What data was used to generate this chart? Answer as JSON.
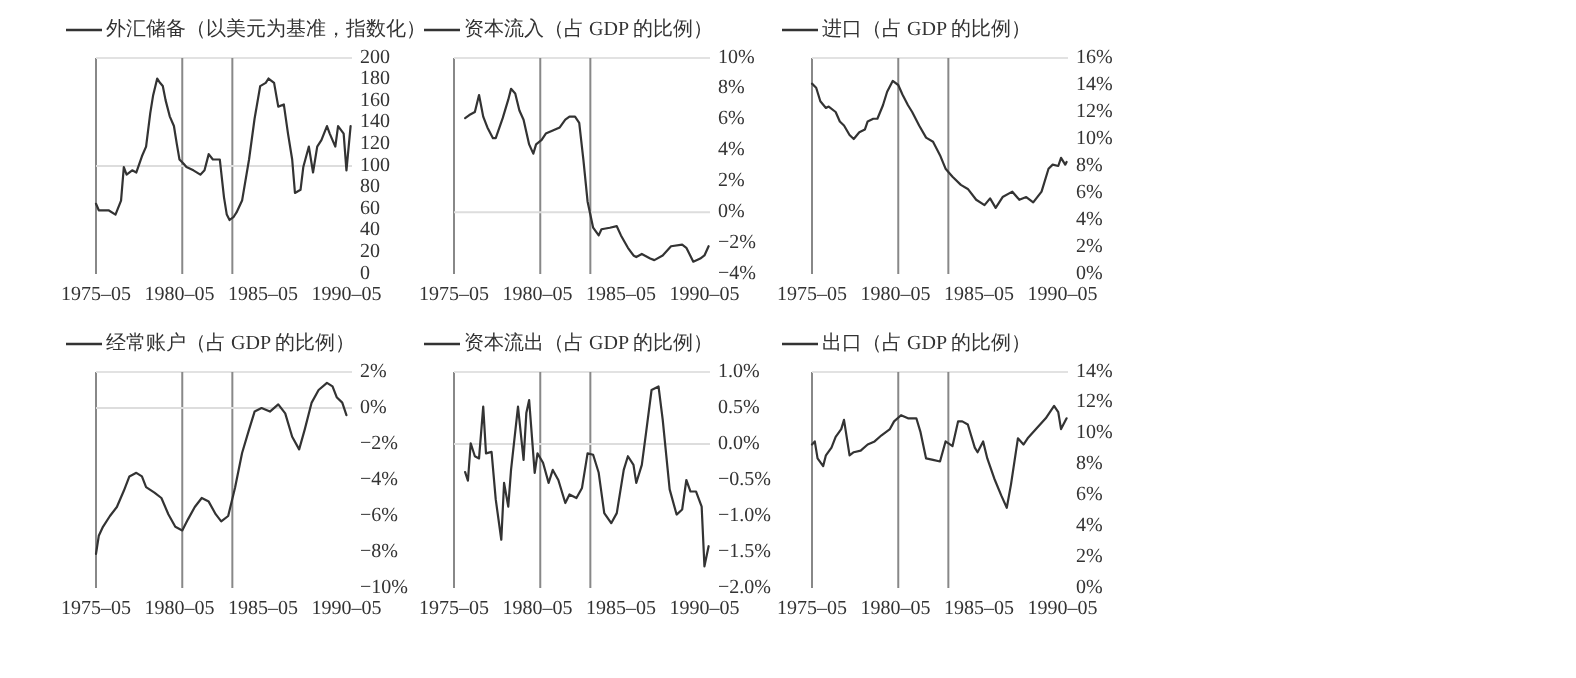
{
  "chart_data": [
    {
      "type": "line",
      "legend": "top",
      "xlim": [
        "1975-05",
        "1990-09"
      ],
      "ylim": [
        0,
        200
      ],
      "yticks": [
        0,
        20,
        40,
        60,
        80,
        100,
        120,
        140,
        160,
        180,
        200
      ],
      "xticks": [
        {
          "value": "1975-05",
          "label": "1975–05"
        },
        {
          "value": "1980-05",
          "label": "1980–05"
        },
        {
          "value": "1985-05",
          "label": "1985–05"
        },
        {
          "value": "1990-05",
          "label": "1990–05"
        }
      ],
      "ref_lines": [
        {
          "axis": "x",
          "value": "1980-07",
          "color": "#888888"
        },
        {
          "axis": "x",
          "value": "1983-07",
          "color": "#888888"
        },
        {
          "axis": "y",
          "value": 100,
          "color": "#dddddd"
        }
      ],
      "x": [
        "1975-05",
        "1975-07",
        "1976-02",
        "1976-07",
        "1976-11",
        "1977-01",
        "1977-03",
        "1977-07",
        "1977-10",
        "1978-02",
        "1978-05",
        "1978-08",
        "1978-10",
        "1979-01",
        "1979-03",
        "1979-05",
        "1979-07",
        "1979-10",
        "1980-01",
        "1980-03",
        "1980-05",
        "1980-08",
        "1980-10",
        "1981-03",
        "1981-08",
        "1981-11",
        "1982-02",
        "1982-05",
        "1982-10",
        "1983-01",
        "1983-03",
        "1983-05",
        "1983-08",
        "1983-10",
        "1984-02",
        "1984-07",
        "1984-11",
        "1985-03",
        "1985-07",
        "1985-09",
        "1986-01",
        "1986-04",
        "1986-08",
        "1986-11",
        "1987-02",
        "1987-04",
        "1987-08",
        "1987-10",
        "1988-02",
        "1988-05",
        "1988-08",
        "1988-11",
        "1989-03",
        "1989-05",
        "1989-09",
        "1989-11",
        "1990-03",
        "1990-05",
        "1990-08"
      ],
      "series": [
        {
          "name": "外汇储备（以美元为基准，指数化）",
          "color": "#333333",
          "values": [
            65,
            59,
            59,
            55,
            68,
            99,
            92,
            96,
            94,
            109,
            118,
            149,
            165,
            181,
            177,
            174,
            161,
            146,
            137,
            121,
            106,
            102,
            99,
            96,
            92,
            96,
            111,
            106,
            106,
            71,
            55,
            50,
            53,
            57,
            68,
            106,
            144,
            174,
            177,
            181,
            177,
            155,
            157,
            130,
            106,
            75,
            78,
            99,
            118,
            94,
            118,
            124,
            137,
            130,
            118,
            137,
            130,
            96,
            137
          ]
        }
      ]
    },
    {
      "type": "line",
      "legend": "top",
      "xlim": [
        "1975-05",
        "1990-09"
      ],
      "ylim": [
        -4,
        10
      ],
      "yticks": [
        {
          "value": -4,
          "label": "−4%"
        },
        {
          "value": -2,
          "label": "−2%"
        },
        {
          "value": 0,
          "label": "0%"
        },
        {
          "value": 2,
          "label": "2%"
        },
        {
          "value": 4,
          "label": "4%"
        },
        {
          "value": 6,
          "label": "6%"
        },
        {
          "value": 8,
          "label": "8%"
        },
        {
          "value": 10,
          "label": "10%"
        }
      ],
      "xticks": [
        {
          "value": "1975-05",
          "label": "1975–05"
        },
        {
          "value": "1980-05",
          "label": "1980–05"
        },
        {
          "value": "1985-05",
          "label": "1985–05"
        },
        {
          "value": "1990-05",
          "label": "1990–05"
        }
      ],
      "ref_lines": [
        {
          "axis": "x",
          "value": "1980-07",
          "color": "#888888"
        },
        {
          "axis": "x",
          "value": "1983-07",
          "color": "#888888"
        },
        {
          "axis": "y",
          "value": 0,
          "color": "#dddddd"
        }
      ],
      "x": [
        "1976-01",
        "1976-04",
        "1976-08",
        "1976-11",
        "1977-02",
        "1977-05",
        "1977-09",
        "1977-11",
        "1978-04",
        "1978-08",
        "1978-10",
        "1979-01",
        "1979-04",
        "1979-07",
        "1979-11",
        "1980-02",
        "1980-04",
        "1980-08",
        "1980-11",
        "1981-04",
        "1981-09",
        "1982-01",
        "1982-04",
        "1982-08",
        "1982-11",
        "1983-02",
        "1983-05",
        "1983-09",
        "1984-01",
        "1984-03",
        "1984-09",
        "1985-02",
        "1985-05",
        "1985-10",
        "1986-02",
        "1986-04",
        "1986-08",
        "1987-02",
        "1987-05",
        "1987-11",
        "1988-05",
        "1989-01",
        "1989-04",
        "1989-09",
        "1990-02",
        "1990-05",
        "1990-08"
      ],
      "series": [
        {
          "name": "资本流入（占 GDP 的比例）",
          "color": "#333333",
          "values": [
            6.1,
            6.3,
            6.5,
            7.6,
            6.2,
            5.5,
            4.8,
            4.8,
            6.1,
            7.3,
            8.0,
            7.7,
            6.6,
            6.0,
            4.4,
            3.8,
            4.4,
            4.7,
            5.1,
            5.3,
            5.5,
            6.0,
            6.2,
            6.2,
            5.8,
            3.4,
            0.7,
            -1.0,
            -1.5,
            -1.1,
            -1.0,
            -0.9,
            -1.5,
            -2.3,
            -2.8,
            -2.9,
            -2.7,
            -3.0,
            -3.1,
            -2.8,
            -2.2,
            -2.1,
            -2.3,
            -3.2,
            -3.0,
            -2.8,
            -2.2
          ]
        }
      ]
    },
    {
      "type": "line",
      "legend": "top",
      "xlim": [
        "1975-05",
        "1990-09"
      ],
      "ylim": [
        0,
        16
      ],
      "yticks": [
        {
          "value": 0,
          "label": "0%"
        },
        {
          "value": 2,
          "label": "2%"
        },
        {
          "value": 4,
          "label": "4%"
        },
        {
          "value": 6,
          "label": "6%"
        },
        {
          "value": 8,
          "label": "8%"
        },
        {
          "value": 10,
          "label": "10%"
        },
        {
          "value": 12,
          "label": "12%"
        },
        {
          "value": 14,
          "label": "14%"
        },
        {
          "value": 16,
          "label": "16%"
        }
      ],
      "xticks": [
        {
          "value": "1975-05",
          "label": "1975–05"
        },
        {
          "value": "1980-05",
          "label": "1980–05"
        },
        {
          "value": "1985-05",
          "label": "1985–05"
        },
        {
          "value": "1990-05",
          "label": "1990–05"
        }
      ],
      "ref_lines": [
        {
          "axis": "x",
          "value": "1980-07",
          "color": "#888888"
        },
        {
          "axis": "x",
          "value": "1983-07",
          "color": "#888888"
        }
      ],
      "x": [
        "1975-05",
        "1975-08",
        "1975-11",
        "1976-03",
        "1976-05",
        "1976-10",
        "1977-01",
        "1977-04",
        "1977-08",
        "1977-11",
        "1978-03",
        "1978-07",
        "1978-09",
        "1979-01",
        "1979-04",
        "1979-08",
        "1979-11",
        "1980-03",
        "1980-07",
        "1980-10",
        "1981-02",
        "1981-05",
        "1981-10",
        "1982-03",
        "1982-08",
        "1983-01",
        "1983-05",
        "1983-10",
        "1984-04",
        "1984-09",
        "1985-03",
        "1985-09",
        "1986-01",
        "1986-05",
        "1986-10",
        "1987-05",
        "1987-10",
        "1988-03",
        "1988-08",
        "1989-02",
        "1989-07",
        "1989-10",
        "1990-02",
        "1990-04",
        "1990-07",
        "1990-08"
      ],
      "series": [
        {
          "name": "进口（占 GDP 的比例）",
          "color": "#333333",
          "values": [
            14.1,
            13.8,
            12.8,
            12.3,
            12.4,
            12.0,
            11.3,
            11.0,
            10.3,
            10.0,
            10.5,
            10.7,
            11.3,
            11.5,
            11.5,
            12.5,
            13.5,
            14.3,
            14.0,
            13.3,
            12.5,
            12.0,
            11.0,
            10.1,
            9.8,
            8.8,
            7.8,
            7.2,
            6.6,
            6.3,
            5.5,
            5.1,
            5.6,
            4.9,
            5.7,
            6.1,
            5.5,
            5.7,
            5.3,
            6.1,
            7.8,
            8.1,
            8.0,
            8.6,
            8.1,
            8.3
          ]
        }
      ]
    },
    {
      "type": "line",
      "legend": "top",
      "xlim": [
        "1975-05",
        "1990-09"
      ],
      "ylim": [
        -10,
        2
      ],
      "yticks": [
        {
          "value": -10,
          "label": "−10%"
        },
        {
          "value": -8,
          "label": "−8%"
        },
        {
          "value": -6,
          "label": "−6%"
        },
        {
          "value": -4,
          "label": "−4%"
        },
        {
          "value": -2,
          "label": "−2%"
        },
        {
          "value": 0,
          "label": "0%"
        },
        {
          "value": 2,
          "label": "2%"
        }
      ],
      "xticks": [
        {
          "value": "1975-05",
          "label": "1975–05"
        },
        {
          "value": "1980-05",
          "label": "1980–05"
        },
        {
          "value": "1985-05",
          "label": "1985–05"
        },
        {
          "value": "1990-05",
          "label": "1990–05"
        }
      ],
      "ref_lines": [
        {
          "axis": "x",
          "value": "1980-07",
          "color": "#888888"
        },
        {
          "axis": "x",
          "value": "1983-07",
          "color": "#888888"
        },
        {
          "axis": "y",
          "value": 0,
          "color": "#dddddd"
        }
      ],
      "x": [
        "1975-05",
        "1975-07",
        "1975-10",
        "1976-03",
        "1976-08",
        "1977-01",
        "1977-05",
        "1977-10",
        "1978-02",
        "1978-05",
        "1978-11",
        "1979-04",
        "1979-09",
        "1980-02",
        "1980-07",
        "1980-11",
        "1981-04",
        "1981-09",
        "1982-02",
        "1982-07",
        "1982-11",
        "1983-04",
        "1983-09",
        "1984-02",
        "1984-07",
        "1984-11",
        "1985-04",
        "1985-10",
        "1986-04",
        "1986-09",
        "1987-02",
        "1987-07",
        "1987-11",
        "1988-04",
        "1988-09",
        "1989-03",
        "1989-07",
        "1989-10",
        "1990-02",
        "1990-05"
      ],
      "series": [
        {
          "name": "经常账户（占 GDP 的比例）",
          "color": "#333333",
          "values": [
            -8.1,
            -7.1,
            -6.6,
            -6.0,
            -5.5,
            -4.6,
            -3.8,
            -3.6,
            -3.8,
            -4.4,
            -4.7,
            -5.0,
            -5.9,
            -6.6,
            -6.8,
            -6.2,
            -5.5,
            -5.0,
            -5.2,
            -5.9,
            -6.3,
            -6.0,
            -4.4,
            -2.5,
            -1.2,
            -0.2,
            0.0,
            -0.2,
            0.2,
            -0.3,
            -1.6,
            -2.3,
            -1.2,
            0.3,
            1.0,
            1.4,
            1.2,
            0.6,
            0.3,
            -0.4
          ]
        }
      ]
    },
    {
      "type": "line",
      "legend": "top",
      "xlim": [
        "1975-05",
        "1990-09"
      ],
      "ylim": [
        -2,
        1
      ],
      "yticks": [
        {
          "value": -2,
          "label": "−2.0%"
        },
        {
          "value": -1.5,
          "label": "−1.5%"
        },
        {
          "value": -1,
          "label": "−1.0%"
        },
        {
          "value": -0.5,
          "label": "−0.5%"
        },
        {
          "value": 0,
          "label": "0.0%"
        },
        {
          "value": 0.5,
          "label": "0.5%"
        },
        {
          "value": 1,
          "label": "1.0%"
        }
      ],
      "xticks": [
        {
          "value": "1975-05",
          "label": "1975–05"
        },
        {
          "value": "1980-05",
          "label": "1980–05"
        },
        {
          "value": "1985-05",
          "label": "1985–05"
        },
        {
          "value": "1990-05",
          "label": "1990–05"
        }
      ],
      "ref_lines": [
        {
          "axis": "x",
          "value": "1980-07",
          "color": "#888888"
        },
        {
          "axis": "x",
          "value": "1983-07",
          "color": "#888888"
        },
        {
          "axis": "y",
          "value": 0,
          "color": "#dddddd"
        }
      ],
      "x": [
        "1976-01",
        "1976-03",
        "1976-05",
        "1976-08",
        "1976-11",
        "1977-02",
        "1977-04",
        "1977-08",
        "1977-11",
        "1978-03",
        "1978-05",
        "1978-08",
        "1978-10",
        "1979-03",
        "1979-07",
        "1979-09",
        "1979-11",
        "1980-03",
        "1980-05",
        "1980-09",
        "1981-01",
        "1981-04",
        "1981-08",
        "1982-01",
        "1982-04",
        "1982-09",
        "1983-01",
        "1983-05",
        "1983-09",
        "1984-01",
        "1984-05",
        "1984-10",
        "1985-02",
        "1985-07",
        "1985-10",
        "1986-02",
        "1986-04",
        "1986-08",
        "1986-11",
        "1987-03",
        "1987-08",
        "1987-11",
        "1988-04",
        "1988-09",
        "1989-01",
        "1989-04",
        "1989-07",
        "1989-11",
        "1990-03",
        "1990-05",
        "1990-08"
      ],
      "series": [
        {
          "name": "资本流出（占 GDP 的比例）",
          "color": "#333333",
          "values": [
            -0.39,
            -0.51,
            0.01,
            -0.17,
            -0.2,
            0.52,
            -0.13,
            -0.11,
            -0.77,
            -1.33,
            -0.54,
            -0.87,
            -0.36,
            0.52,
            -0.22,
            0.43,
            0.61,
            -0.4,
            -0.13,
            -0.26,
            -0.54,
            -0.36,
            -0.5,
            -0.82,
            -0.7,
            -0.75,
            -0.61,
            -0.13,
            -0.15,
            -0.4,
            -0.96,
            -1.1,
            -0.96,
            -0.36,
            -0.17,
            -0.29,
            -0.54,
            -0.29,
            0.15,
            0.75,
            0.8,
            0.34,
            -0.63,
            -0.98,
            -0.91,
            -0.5,
            -0.66,
            -0.66,
            -0.87,
            -1.7,
            -1.42
          ]
        }
      ]
    },
    {
      "type": "line",
      "legend": "top",
      "xlim": [
        "1975-05",
        "1990-09"
      ],
      "ylim": [
        0,
        14
      ],
      "yticks": [
        {
          "value": 0,
          "label": "0%"
        },
        {
          "value": 2,
          "label": "2%"
        },
        {
          "value": 4,
          "label": "4%"
        },
        {
          "value": 6,
          "label": "6%"
        },
        {
          "value": 8,
          "label": "8%"
        },
        {
          "value": 10,
          "label": "10%"
        },
        {
          "value": 12,
          "label": "12%"
        },
        {
          "value": 14,
          "label": "14%"
        }
      ],
      "xticks": [
        {
          "value": "1975-05",
          "label": "1975–05"
        },
        {
          "value": "1980-05",
          "label": "1980–05"
        },
        {
          "value": "1985-05",
          "label": "1985–05"
        },
        {
          "value": "1990-05",
          "label": "1990–05"
        }
      ],
      "ref_lines": [
        {
          "axis": "x",
          "value": "1980-07",
          "color": "#888888"
        },
        {
          "axis": "x",
          "value": "1983-07",
          "color": "#888888"
        }
      ],
      "x": [
        "1975-05",
        "1975-07",
        "1975-09",
        "1976-01",
        "1976-03",
        "1976-07",
        "1976-10",
        "1977-02",
        "1977-04",
        "1977-08",
        "1977-11",
        "1978-04",
        "1978-09",
        "1979-02",
        "1979-07",
        "1980-01",
        "1980-04",
        "1980-09",
        "1981-02",
        "1981-08",
        "1981-11",
        "1982-03",
        "1982-08",
        "1983-01",
        "1983-05",
        "1983-10",
        "1984-02",
        "1984-05",
        "1984-09",
        "1985-02",
        "1985-04",
        "1985-08",
        "1985-11",
        "1986-04",
        "1986-09",
        "1987-01",
        "1987-04",
        "1987-09",
        "1988-01",
        "1988-04",
        "1988-10",
        "1989-05",
        "1989-11",
        "1990-02",
        "1990-04",
        "1990-08"
      ],
      "series": [
        {
          "name": "出口（占 GDP 的比例）",
          "color": "#333333",
          "values": [
            9.3,
            9.5,
            8.4,
            7.9,
            8.6,
            9.1,
            9.8,
            10.3,
            10.9,
            8.6,
            8.8,
            8.9,
            9.3,
            9.5,
            9.9,
            10.3,
            10.8,
            11.2,
            11.0,
            11.0,
            10.1,
            8.4,
            8.3,
            8.2,
            9.5,
            9.2,
            10.8,
            10.8,
            10.6,
            9.1,
            8.8,
            9.5,
            8.4,
            7.1,
            6.0,
            5.2,
            6.7,
            9.7,
            9.3,
            9.7,
            10.3,
            11.0,
            11.8,
            11.4,
            10.3,
            11.0
          ]
        }
      ]
    }
  ]
}
